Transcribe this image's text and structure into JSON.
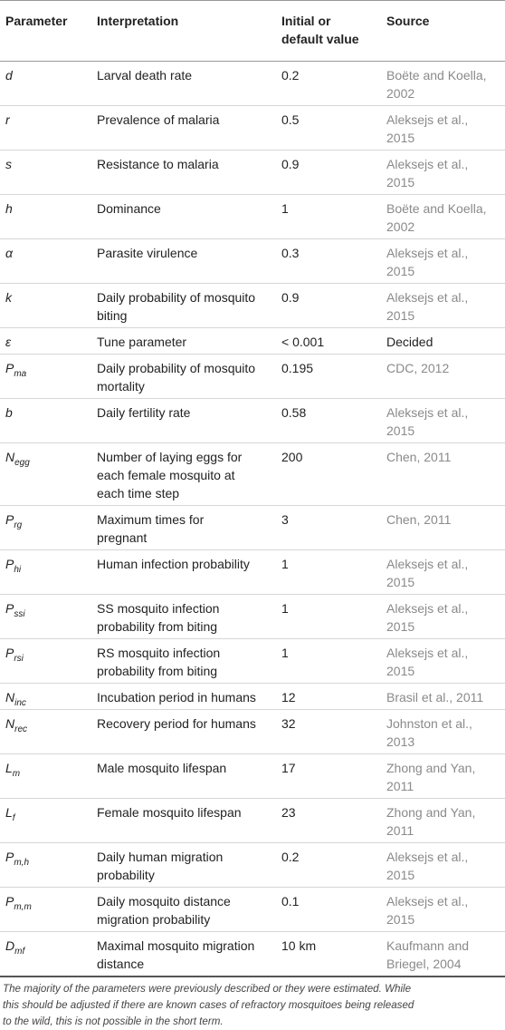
{
  "table": {
    "header": [
      "Parameter",
      "Interpretation",
      [
        "Initial or",
        "default value"
      ],
      "Source"
    ],
    "source_color": "#8a8a8a",
    "rows": [
      {
        "parameter": "d",
        "interpretation": "Larval death rate",
        "value": "0.2",
        "source": [
          "Boëte and Koella,",
          "2002"
        ]
      },
      {
        "parameter": "r",
        "interpretation": "Prevalence of malaria",
        "value": "0.5",
        "source": [
          "Aleksejs et al.,",
          "2015"
        ]
      },
      {
        "parameter": "s",
        "interpretation": "Resistance to malaria",
        "value": "0.9",
        "source": [
          "Aleksejs et al.,",
          "2015"
        ]
      },
      {
        "parameter": "h",
        "interpretation": "Dominance",
        "value": "1",
        "source": [
          "Boëte and Koella,",
          "2002"
        ]
      },
      {
        "parameter": "α",
        "interpretation": "Parasite virulence",
        "value": "0.3",
        "source": [
          "Aleksejs et al.,",
          "2015"
        ]
      },
      {
        "parameter": "k",
        "interpretation": [
          "Daily probability of mosquito",
          "biting"
        ],
        "value": "0.9",
        "source": [
          "Aleksejs et al.,",
          "2015"
        ]
      },
      {
        "parameter": "ε",
        "interpretation": "Tune parameter",
        "value": "< 0.001",
        "source": "Decided",
        "source_color": "#222222"
      },
      {
        "parameter": {
          "symbol": "P",
          "subscript": "ma"
        },
        "interpretation": [
          "Daily probability of mosquito",
          "mortality"
        ],
        "value": "0.195",
        "source": "CDC, 2012"
      },
      {
        "parameter": "b",
        "interpretation": "Daily fertility rate",
        "value": "0.58",
        "source": [
          "Aleksejs et al.,",
          "2015"
        ]
      },
      {
        "parameter": {
          "symbol": "N",
          "subscript": "egg"
        },
        "interpretation": [
          "Number of laying eggs for",
          "each female mosquito at",
          "each time step"
        ],
        "value": "200",
        "source": "Chen, 2011"
      },
      {
        "parameter": {
          "symbol": "P",
          "subscript": "rg"
        },
        "interpretation": [
          "Maximum times for",
          "pregnant"
        ],
        "value": "3",
        "source": "Chen, 2011"
      },
      {
        "parameter": {
          "symbol": "P",
          "subscript": "hi"
        },
        "interpretation": "Human infection probability",
        "value": "1",
        "source": [
          "Aleksejs et al.,",
          "2015"
        ]
      },
      {
        "parameter": {
          "symbol": "P",
          "subscript": "ssi"
        },
        "interpretation": [
          "SS mosquito infection",
          "probability from biting"
        ],
        "value": "1",
        "source": [
          "Aleksejs et al.,",
          "2015"
        ]
      },
      {
        "parameter": {
          "symbol": "P",
          "subscript": "rsi"
        },
        "interpretation": [
          "RS mosquito infection",
          "probability from biting"
        ],
        "value": "1",
        "source": [
          "Aleksejs et al.,",
          "2015"
        ]
      },
      {
        "parameter": {
          "symbol": "N",
          "subscript": "inc"
        },
        "interpretation": "Incubation period in humans",
        "value": "12",
        "source": "Brasil et al., 2011"
      },
      {
        "parameter": {
          "symbol": "N",
          "subscript": "rec"
        },
        "interpretation": "Recovery period for humans",
        "value": "32",
        "source": [
          "Johnston et al.,",
          "2013"
        ]
      },
      {
        "parameter": {
          "symbol": "L",
          "subscript": "m"
        },
        "interpretation": "Male mosquito lifespan",
        "value": "17",
        "source": [
          "Zhong and Yan,",
          "2011"
        ]
      },
      {
        "parameter": {
          "symbol": "L",
          "subscript": "f"
        },
        "interpretation": "Female mosquito lifespan",
        "value": "23",
        "source": [
          "Zhong and Yan,",
          "2011"
        ]
      },
      {
        "parameter": {
          "symbol": "P",
          "subscript": "m,h"
        },
        "interpretation": [
          "Daily human migration",
          "probability"
        ],
        "value": "0.2",
        "source": [
          "Aleksejs et al.,",
          "2015"
        ]
      },
      {
        "parameter": {
          "symbol": "P",
          "subscript": "m,m"
        },
        "interpretation": [
          "Daily mosquito distance",
          "migration probability"
        ],
        "value": "0.1",
        "source": [
          "Aleksejs et al.,",
          "2015"
        ]
      },
      {
        "parameter": {
          "symbol": "D",
          "subscript": "mf"
        },
        "interpretation": [
          "Maximal mosquito migration",
          "distance"
        ],
        "value": "10 km",
        "source": [
          "Kaufmann and",
          "Briegel, 2004"
        ]
      }
    ],
    "footnote": [
      "The majority of the parameters were previously described or they were estimated. While",
      "this should be adjusted if there are known cases of refractory mosquitoes being released",
      "to the wild, this is not possible in the short term."
    ]
  }
}
